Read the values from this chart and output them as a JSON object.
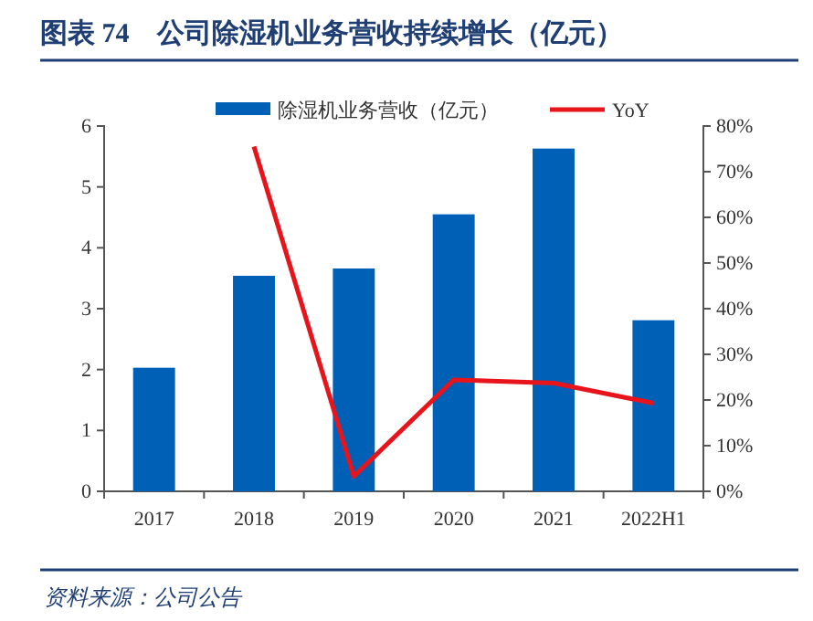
{
  "chart_data": {
    "type": "bar",
    "title": "图表 74　公司除湿机业务营收持续增长（亿元）",
    "categories": [
      "2017",
      "2018",
      "2019",
      "2020",
      "2021",
      "2022H1"
    ],
    "series": [
      {
        "name": "除湿机业务营收（亿元）",
        "color": "#0060b6",
        "values": [
          2.03,
          3.54,
          3.66,
          4.55,
          5.63,
          2.81
        ]
      },
      {
        "name": "YoY",
        "type": "line",
        "axis": "y2",
        "color": "#e8141c",
        "values": [
          null,
          75.5,
          3.3,
          24.4,
          23.7,
          19.3
        ]
      }
    ],
    "ylim": [
      0,
      6
    ],
    "yticks": [
      0,
      1,
      2,
      3,
      4,
      5,
      6
    ],
    "y2lim": [
      0,
      80
    ],
    "y2ticks": [
      {
        "value": 0,
        "label": "0%"
      },
      {
        "value": 10,
        "label": "10%"
      },
      {
        "value": 20,
        "label": "20%"
      },
      {
        "value": 30,
        "label": "30%"
      },
      {
        "value": 40,
        "label": "40%"
      },
      {
        "value": 50,
        "label": "50%"
      },
      {
        "value": 60,
        "label": "60%"
      },
      {
        "value": 70,
        "label": "70%"
      },
      {
        "value": 80,
        "label": "80%"
      }
    ],
    "legend": "top",
    "grid": false,
    "marker": "none",
    "annotations": [
      "资料来源：公司公告"
    ]
  }
}
